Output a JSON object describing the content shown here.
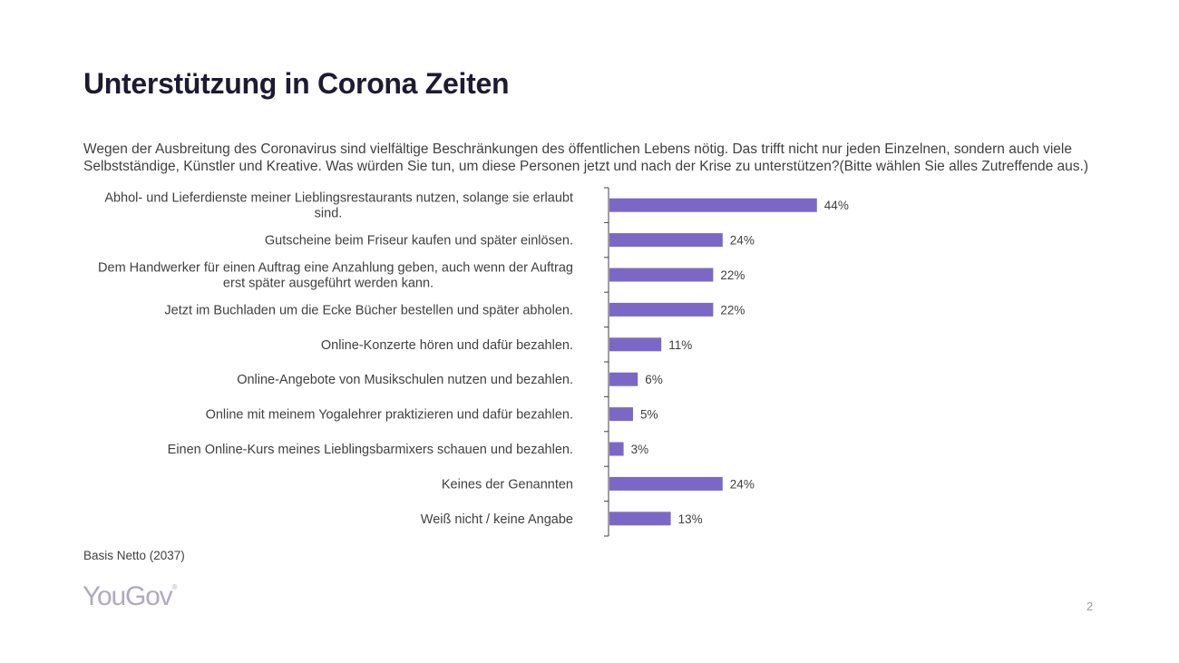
{
  "slide": {
    "title": "Unterstützung in Corona Zeiten",
    "question": "Wegen der Ausbreitung des Coronavirus sind vielfältige Beschränkungen des öffentlichen Lebens nötig. Das trifft nicht nur jeden Einzelnen, sondern auch viele Selbstständige, Künstler und Kreative. Was würden Sie tun, um diese Personen jetzt und nach der Krise zu unterstützen?(Bitte wählen Sie alles Zutreffende aus.)",
    "base_note": "Basis Netto (2037)",
    "logo_text": "YouGov",
    "logo_mark": "®",
    "page_number": "2"
  },
  "colors": {
    "bar": "#7b68c6",
    "title": "#1d1a33",
    "logo": "#b1a9c3"
  },
  "chart_data": {
    "type": "bar",
    "orientation": "horizontal",
    "categories": [
      "Abhol- und Lieferdienste meiner Lieblingsrestaurants nutzen, solange sie erlaubt sind.",
      "Gutscheine beim Friseur kaufen und später einlösen.",
      "Dem Handwerker für einen Auftrag eine Anzahlung geben, auch wenn der Auftrag erst später ausgeführt werden kann.",
      "Jetzt im Buchladen um die Ecke Bücher bestellen und später abholen.",
      "Online-Konzerte hören und dafür bezahlen.",
      "Online-Angebote von Musikschulen nutzen und bezahlen.",
      "Online mit meinem Yogalehrer praktizieren und dafür bezahlen.",
      "Einen Online-Kurs meines Lieblingsbarmixers schauen und bezahlen.",
      "Keines der Genannten",
      "Weiß nicht / keine Angabe"
    ],
    "category_lines": [
      [
        "Abhol- und Lieferdienste meiner Lieblingsrestaurants nutzen, solange sie erlaubt",
        "sind."
      ],
      [
        "Gutscheine beim Friseur kaufen und später einlösen."
      ],
      [
        "Dem Handwerker für einen Auftrag eine Anzahlung geben, auch wenn der Auftrag",
        "erst später ausgeführt werden kann."
      ],
      [
        "Jetzt im Buchladen um die Ecke Bücher bestellen und später abholen."
      ],
      [
        "Online-Konzerte hören und dafür bezahlen."
      ],
      [
        "Online-Angebote von Musikschulen nutzen und bezahlen."
      ],
      [
        "Online mit meinem Yogalehrer praktizieren und dafür bezahlen."
      ],
      [
        "Einen Online-Kurs meines Lieblingsbarmixers schauen und bezahlen."
      ],
      [
        "Keines der Genannten"
      ],
      [
        "Weiß nicht / keine Angabe"
      ]
    ],
    "values": [
      44,
      24,
      22,
      22,
      11,
      6,
      5,
      3,
      24,
      13
    ],
    "value_labels": [
      "44%",
      "24%",
      "22%",
      "22%",
      "11%",
      "6%",
      "5%",
      "3%",
      "24%",
      "13%"
    ],
    "unit": "%",
    "xlim": [
      0,
      100
    ],
    "grid": false,
    "legend": "none"
  }
}
